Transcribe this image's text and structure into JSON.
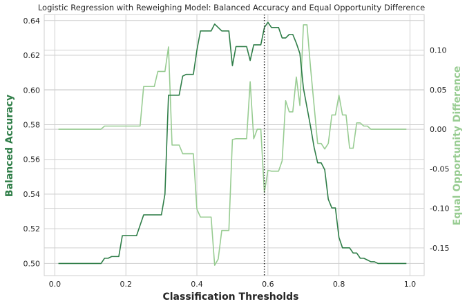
{
  "chart_data": {
    "type": "line",
    "title": "Logistic Regression with Reweighing Model: Balanced Accuracy and Equal Opportunity Difference",
    "xlabel": "Classification Thresholds",
    "xlim": [
      -0.03,
      1.04
    ],
    "xticks": [
      0.0,
      0.2,
      0.4,
      0.6,
      0.8,
      1.0
    ],
    "xtick_labels": [
      "0.0",
      "0.2",
      "0.4",
      "0.6",
      "0.8",
      "1.0"
    ],
    "grid": true,
    "vline": {
      "x": 0.59,
      "style": "dotted",
      "color": "#222222"
    },
    "left_axis": {
      "label": "Balanced Accuracy",
      "color": "#2e7d47",
      "ylim": [
        0.493,
        0.6435
      ],
      "ticks": [
        0.5,
        0.52,
        0.54,
        0.56,
        0.58,
        0.6,
        0.62,
        0.64
      ],
      "tick_labels": [
        "0.50",
        "0.52",
        "0.54",
        "0.56",
        "0.58",
        "0.60",
        "0.62",
        "0.64"
      ]
    },
    "right_axis": {
      "label": "Equal Opportunity Difference",
      "color": "#98cc92",
      "ylim": [
        -0.185,
        0.145
      ],
      "ticks": [
        -0.15,
        -0.1,
        -0.05,
        0.0,
        0.05,
        0.1
      ],
      "tick_labels": [
        "-0.15",
        "-0.10",
        "-0.05",
        "0.00",
        "0.05",
        "0.10"
      ]
    },
    "series": [
      {
        "axis": "left",
        "color": "#2e7d47",
        "x": [
          0.01,
          0.06,
          0.13,
          0.14,
          0.15,
          0.16,
          0.17,
          0.18,
          0.19,
          0.2,
          0.23,
          0.24,
          0.25,
          0.27,
          0.28,
          0.3,
          0.31,
          0.32,
          0.33,
          0.35,
          0.36,
          0.37,
          0.39,
          0.4,
          0.41,
          0.43,
          0.44,
          0.45,
          0.46,
          0.47,
          0.48,
          0.49,
          0.5,
          0.51,
          0.52,
          0.53,
          0.54,
          0.55,
          0.56,
          0.57,
          0.58,
          0.59,
          0.6,
          0.61,
          0.62,
          0.63,
          0.64,
          0.65,
          0.66,
          0.67,
          0.68,
          0.69,
          0.7,
          0.71,
          0.72,
          0.73,
          0.74,
          0.75,
          0.76,
          0.77,
          0.78,
          0.79,
          0.8,
          0.81,
          0.82,
          0.83,
          0.84,
          0.85,
          0.86,
          0.87,
          0.88,
          0.89,
          0.9,
          0.91,
          0.99
        ],
        "values": [
          0.5,
          0.5,
          0.5,
          0.503,
          0.503,
          0.504,
          0.504,
          0.504,
          0.516,
          0.516,
          0.516,
          0.522,
          0.528,
          0.528,
          0.528,
          0.528,
          0.54,
          0.597,
          0.597,
          0.597,
          0.608,
          0.609,
          0.609,
          0.623,
          0.634,
          0.634,
          0.634,
          0.638,
          0.636,
          0.634,
          0.634,
          0.634,
          0.614,
          0.625,
          0.625,
          0.625,
          0.625,
          0.617,
          0.626,
          0.626,
          0.626,
          0.636,
          0.639,
          0.636,
          0.636,
          0.636,
          0.63,
          0.63,
          0.632,
          0.632,
          0.627,
          0.621,
          0.601,
          0.59,
          0.579,
          0.567,
          0.558,
          0.558,
          0.554,
          0.537,
          0.532,
          0.532,
          0.515,
          0.509,
          0.509,
          0.509,
          0.506,
          0.506,
          0.503,
          0.503,
          0.502,
          0.501,
          0.501,
          0.5,
          0.5
        ]
      },
      {
        "axis": "right",
        "color": "#98cc92",
        "x": [
          0.01,
          0.13,
          0.14,
          0.24,
          0.25,
          0.28,
          0.29,
          0.31,
          0.32,
          0.33,
          0.35,
          0.36,
          0.39,
          0.4,
          0.41,
          0.43,
          0.44,
          0.45,
          0.46,
          0.47,
          0.48,
          0.49,
          0.5,
          0.51,
          0.52,
          0.53,
          0.54,
          0.55,
          0.56,
          0.57,
          0.58,
          0.59,
          0.6,
          0.61,
          0.62,
          0.63,
          0.64,
          0.65,
          0.66,
          0.67,
          0.68,
          0.69,
          0.7,
          0.71,
          0.72,
          0.73,
          0.74,
          0.75,
          0.76,
          0.77,
          0.78,
          0.79,
          0.8,
          0.81,
          0.82,
          0.83,
          0.84,
          0.85,
          0.86,
          0.87,
          0.88,
          0.89,
          0.9,
          0.91,
          0.99
        ],
        "values": [
          0.0,
          0.0,
          0.004,
          0.004,
          0.054,
          0.054,
          0.073,
          0.073,
          0.104,
          -0.02,
          -0.02,
          -0.031,
          -0.031,
          -0.101,
          -0.111,
          -0.111,
          -0.111,
          -0.172,
          -0.164,
          -0.128,
          -0.128,
          -0.128,
          -0.013,
          -0.012,
          -0.012,
          -0.012,
          -0.012,
          0.06,
          -0.012,
          0.0,
          0.0,
          -0.08,
          -0.052,
          -0.053,
          -0.053,
          -0.053,
          -0.04,
          0.036,
          0.022,
          0.022,
          0.066,
          0.03,
          0.132,
          0.132,
          0.078,
          0.03,
          -0.018,
          -0.018,
          -0.025,
          -0.018,
          0.018,
          0.018,
          0.043,
          0.018,
          0.018,
          -0.024,
          -0.024,
          0.008,
          0.008,
          0.004,
          0.004,
          0.0,
          0.0,
          0.0,
          0.0
        ]
      }
    ]
  }
}
